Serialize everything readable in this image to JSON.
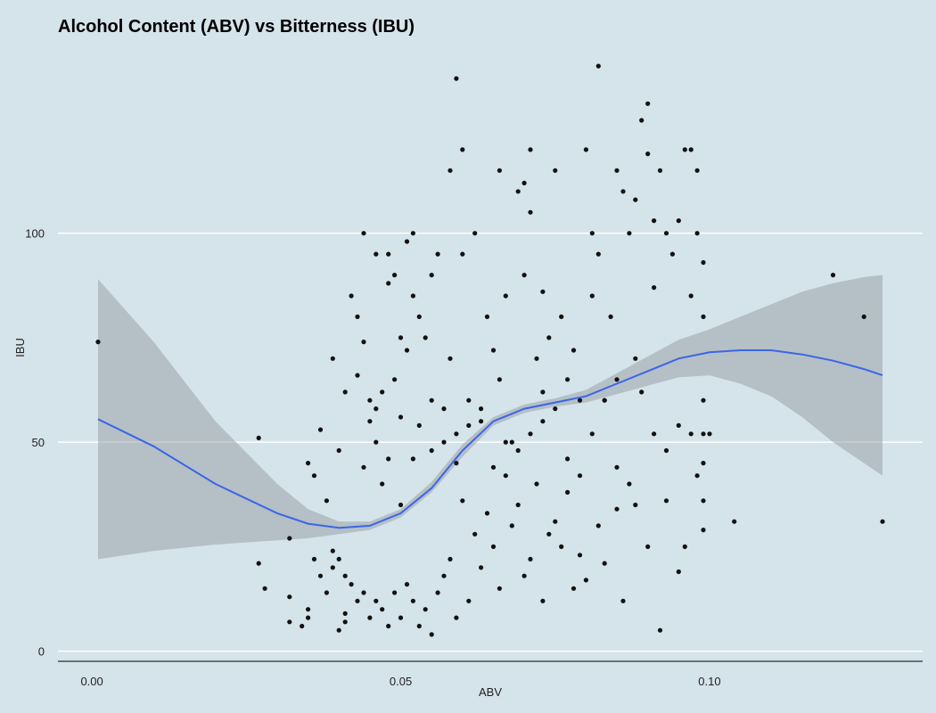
{
  "chart_data": {
    "type": "scatter",
    "title": "Alcohol Content (ABV) vs Bitterness (IBU)",
    "xlabel": "ABV",
    "ylabel": "IBU",
    "xlim": [
      -0.0055,
      0.1345
    ],
    "ylim": [
      -2,
      143
    ],
    "x_ticks": [
      0.0,
      0.05,
      0.1
    ],
    "x_tick_labels": [
      "0.00",
      "0.05",
      "0.10"
    ],
    "y_ticks": [
      0,
      50,
      100
    ],
    "y_tick_labels": [
      "0",
      "50",
      "100"
    ],
    "grid": "horizontal major gridlines (white)",
    "colors": {
      "background": "#d5e3ea",
      "point": "#111111",
      "smooth": "#3a66e6",
      "band": "#bcc3c7",
      "grid": "#ffffff"
    },
    "smooth": {
      "method": "loess",
      "x": [
        0.001,
        0.01,
        0.02,
        0.03,
        0.035,
        0.04,
        0.045,
        0.05,
        0.055,
        0.06,
        0.065,
        0.07,
        0.075,
        0.08,
        0.085,
        0.09,
        0.095,
        0.1,
        0.105,
        0.11,
        0.115,
        0.12,
        0.125,
        0.128
      ],
      "y": [
        55.5,
        49,
        40,
        33,
        30.5,
        29.5,
        30,
        33,
        39,
        48,
        55,
        58,
        59.5,
        61,
        64,
        67,
        70,
        71.5,
        72,
        72,
        71,
        69.5,
        67.5,
        66
      ],
      "lower": [
        22,
        24,
        25.5,
        26.5,
        27,
        28,
        29,
        32,
        38,
        46.5,
        54,
        57,
        58.5,
        59.5,
        61.5,
        63.5,
        65.5,
        66,
        64,
        61,
        56,
        50,
        45,
        42
      ],
      "upper": [
        89,
        74,
        55,
        40,
        34,
        31,
        31,
        34,
        40.5,
        49.5,
        56,
        59,
        60.5,
        62.5,
        66.5,
        70.5,
        74.5,
        77,
        80,
        83,
        86,
        88,
        89.5,
        90
      ]
    },
    "points": [
      [
        0.001,
        74
      ],
      [
        0.027,
        51
      ],
      [
        0.027,
        21
      ],
      [
        0.028,
        15
      ],
      [
        0.032,
        27
      ],
      [
        0.032,
        13
      ],
      [
        0.032,
        7
      ],
      [
        0.034,
        6
      ],
      [
        0.035,
        10
      ],
      [
        0.035,
        8
      ],
      [
        0.037,
        53
      ],
      [
        0.039,
        20
      ],
      [
        0.04,
        5
      ],
      [
        0.041,
        7
      ],
      [
        0.041,
        9
      ],
      [
        0.042,
        85
      ],
      [
        0.043,
        80
      ],
      [
        0.044,
        100
      ],
      [
        0.044,
        74
      ],
      [
        0.045,
        60
      ],
      [
        0.045,
        55
      ],
      [
        0.046,
        50
      ],
      [
        0.046,
        95
      ],
      [
        0.047,
        40
      ],
      [
        0.048,
        95
      ],
      [
        0.048,
        88
      ],
      [
        0.049,
        65
      ],
      [
        0.049,
        90
      ],
      [
        0.05,
        75
      ],
      [
        0.05,
        35
      ],
      [
        0.051,
        98
      ],
      [
        0.051,
        72
      ],
      [
        0.052,
        100
      ],
      [
        0.052,
        85
      ],
      [
        0.053,
        80
      ],
      [
        0.054,
        75
      ],
      [
        0.055,
        90
      ],
      [
        0.055,
        60
      ],
      [
        0.056,
        95
      ],
      [
        0.057,
        50
      ],
      [
        0.058,
        115
      ],
      [
        0.058,
        70
      ],
      [
        0.059,
        137
      ],
      [
        0.059,
        45
      ],
      [
        0.06,
        120
      ],
      [
        0.06,
        95
      ],
      [
        0.061,
        60
      ],
      [
        0.062,
        100
      ],
      [
        0.063,
        55
      ],
      [
        0.064,
        80
      ],
      [
        0.065,
        72
      ],
      [
        0.066,
        115
      ],
      [
        0.066,
        65
      ],
      [
        0.067,
        85
      ],
      [
        0.068,
        50
      ],
      [
        0.069,
        110
      ],
      [
        0.07,
        112
      ],
      [
        0.07,
        90
      ],
      [
        0.071,
        120
      ],
      [
        0.071,
        105
      ],
      [
        0.072,
        70
      ],
      [
        0.073,
        86
      ],
      [
        0.073,
        55
      ],
      [
        0.074,
        75
      ],
      [
        0.075,
        115
      ],
      [
        0.076,
        80
      ],
      [
        0.077,
        65
      ],
      [
        0.078,
        72
      ],
      [
        0.079,
        60
      ],
      [
        0.08,
        120
      ],
      [
        0.081,
        100
      ],
      [
        0.081,
        85
      ],
      [
        0.082,
        140
      ],
      [
        0.082,
        95
      ],
      [
        0.083,
        60
      ],
      [
        0.084,
        80
      ],
      [
        0.085,
        115
      ],
      [
        0.085,
        65
      ],
      [
        0.086,
        110
      ],
      [
        0.087,
        100
      ],
      [
        0.088,
        108
      ],
      [
        0.088,
        70
      ],
      [
        0.089,
        127
      ],
      [
        0.09,
        131
      ],
      [
        0.09,
        119
      ],
      [
        0.091,
        103
      ],
      [
        0.091,
        87
      ],
      [
        0.092,
        115
      ],
      [
        0.093,
        100
      ],
      [
        0.094,
        95
      ],
      [
        0.095,
        103
      ],
      [
        0.096,
        120
      ],
      [
        0.097,
        120
      ],
      [
        0.097,
        85
      ],
      [
        0.098,
        115
      ],
      [
        0.098,
        100
      ],
      [
        0.099,
        93
      ],
      [
        0.099,
        80
      ],
      [
        0.099,
        60
      ],
      [
        0.099,
        52
      ],
      [
        0.099,
        45
      ],
      [
        0.099,
        36
      ],
      [
        0.099,
        29
      ],
      [
        0.1,
        52
      ],
      [
        0.104,
        31
      ],
      [
        0.12,
        90
      ],
      [
        0.125,
        80
      ],
      [
        0.128,
        31
      ],
      [
        0.092,
        5
      ],
      [
        0.095,
        19
      ],
      [
        0.093,
        36
      ],
      [
        0.096,
        25
      ],
      [
        0.09,
        25
      ],
      [
        0.088,
        35
      ],
      [
        0.086,
        12
      ],
      [
        0.085,
        34
      ],
      [
        0.083,
        21
      ],
      [
        0.082,
        30
      ],
      [
        0.08,
        17
      ],
      [
        0.079,
        23
      ],
      [
        0.078,
        15
      ],
      [
        0.077,
        38
      ],
      [
        0.076,
        25
      ],
      [
        0.075,
        31
      ],
      [
        0.074,
        28
      ],
      [
        0.073,
        12
      ],
      [
        0.072,
        40
      ],
      [
        0.071,
        22
      ],
      [
        0.07,
        18
      ],
      [
        0.069,
        35
      ],
      [
        0.068,
        30
      ],
      [
        0.067,
        42
      ],
      [
        0.066,
        15
      ],
      [
        0.065,
        25
      ],
      [
        0.064,
        33
      ],
      [
        0.063,
        20
      ],
      [
        0.062,
        28
      ],
      [
        0.061,
        12
      ],
      [
        0.06,
        36
      ],
      [
        0.059,
        8
      ],
      [
        0.058,
        22
      ],
      [
        0.057,
        18
      ],
      [
        0.056,
        14
      ],
      [
        0.055,
        4
      ],
      [
        0.054,
        10
      ],
      [
        0.053,
        6
      ],
      [
        0.052,
        12
      ],
      [
        0.051,
        16
      ],
      [
        0.05,
        8
      ],
      [
        0.049,
        14
      ],
      [
        0.048,
        6
      ],
      [
        0.047,
        10
      ],
      [
        0.046,
        12
      ],
      [
        0.045,
        8
      ],
      [
        0.044,
        14
      ],
      [
        0.043,
        12
      ],
      [
        0.042,
        16
      ],
      [
        0.041,
        18
      ],
      [
        0.04,
        22
      ],
      [
        0.039,
        24
      ],
      [
        0.038,
        14
      ],
      [
        0.037,
        18
      ],
      [
        0.036,
        22
      ],
      [
        0.035,
        45
      ],
      [
        0.036,
        42
      ],
      [
        0.038,
        36
      ],
      [
        0.04,
        48
      ],
      [
        0.039,
        70
      ],
      [
        0.041,
        62
      ],
      [
        0.043,
        66
      ],
      [
        0.044,
        44
      ],
      [
        0.046,
        58
      ],
      [
        0.047,
        62
      ],
      [
        0.048,
        46
      ],
      [
        0.05,
        56
      ],
      [
        0.052,
        46
      ],
      [
        0.053,
        54
      ],
      [
        0.055,
        48
      ],
      [
        0.057,
        58
      ],
      [
        0.059,
        52
      ],
      [
        0.061,
        54
      ],
      [
        0.063,
        58
      ],
      [
        0.065,
        44
      ],
      [
        0.067,
        50
      ],
      [
        0.069,
        48
      ],
      [
        0.071,
        52
      ],
      [
        0.073,
        62
      ],
      [
        0.075,
        58
      ],
      [
        0.077,
        46
      ],
      [
        0.079,
        42
      ],
      [
        0.081,
        52
      ],
      [
        0.083,
        60
      ],
      [
        0.085,
        44
      ],
      [
        0.087,
        40
      ],
      [
        0.089,
        62
      ],
      [
        0.091,
        52
      ],
      [
        0.093,
        48
      ],
      [
        0.095,
        54
      ],
      [
        0.097,
        52
      ],
      [
        0.098,
        42
      ]
    ]
  }
}
